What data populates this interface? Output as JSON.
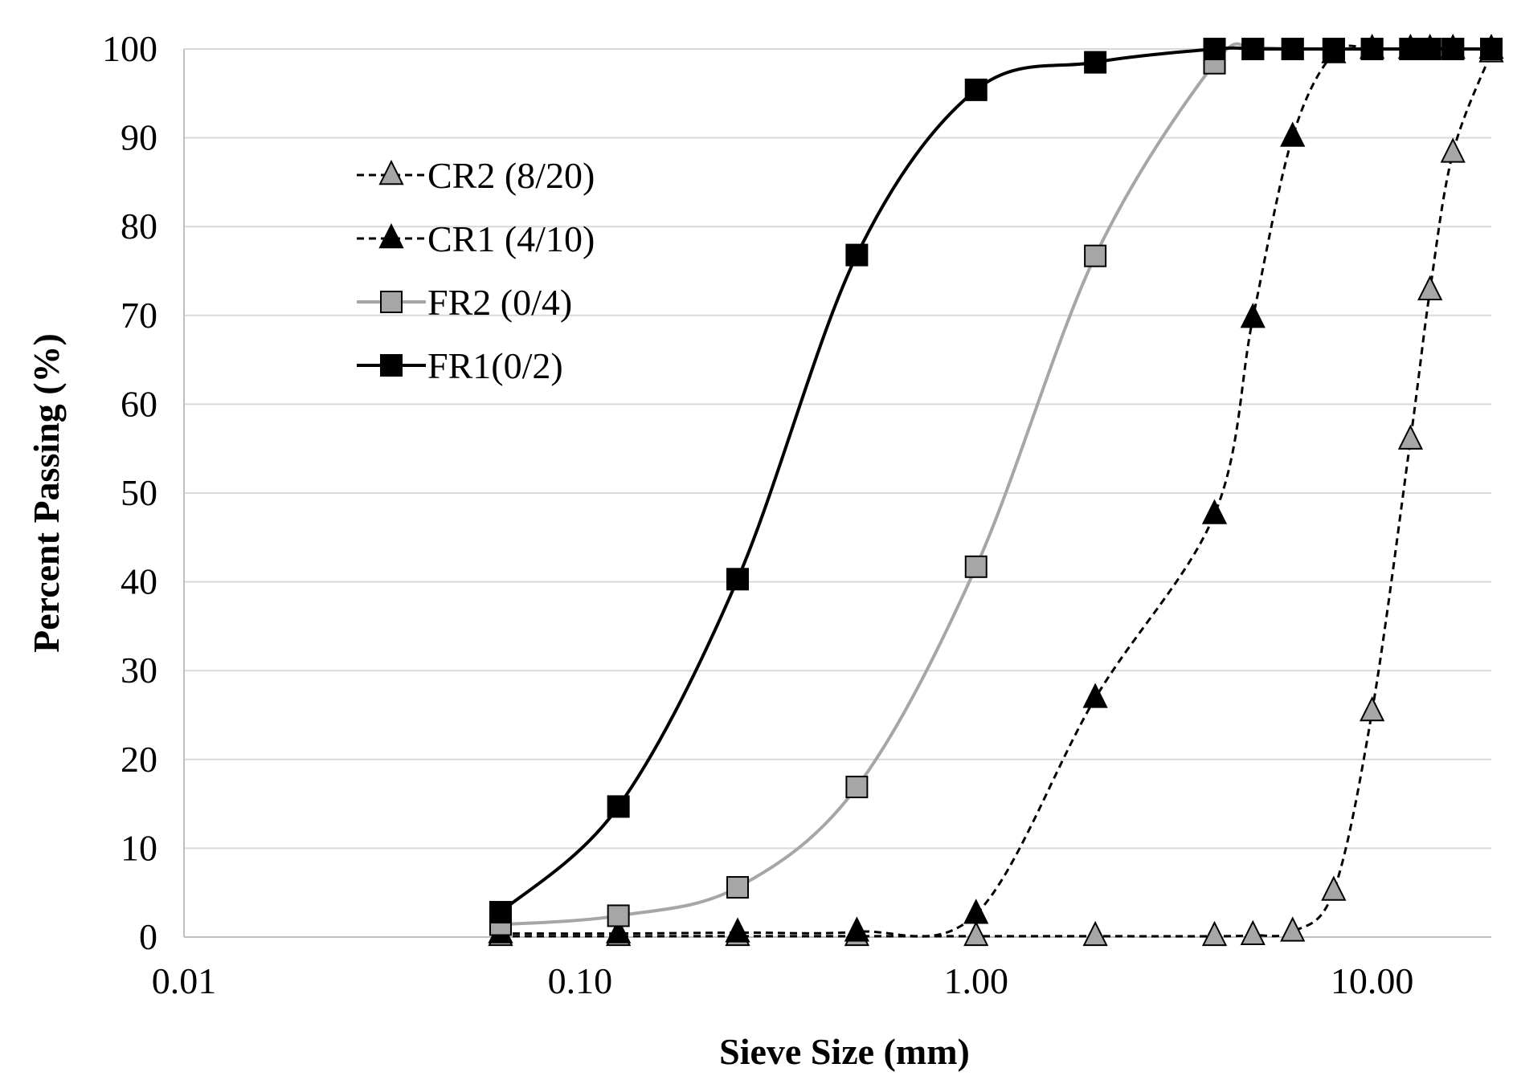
{
  "chart_data": {
    "type": "line",
    "title": "",
    "xlabel": "Sieve Size (mm)",
    "ylabel": "Percent Passing (%)",
    "xscale": "log",
    "xlim": [
      0.01,
      20
    ],
    "ylim": [
      0,
      100
    ],
    "xticks": [
      {
        "value": 0.01,
        "label": "0.01"
      },
      {
        "value": 0.1,
        "label": "0.10"
      },
      {
        "value": 1,
        "label": "1.00"
      },
      {
        "value": 10,
        "label": "10.00"
      }
    ],
    "yticks": [
      0,
      10,
      20,
      30,
      40,
      50,
      60,
      70,
      80,
      90,
      100
    ],
    "grid": "horizontal",
    "legend_position": "top-left",
    "series": [
      {
        "name": "CR2 (8/20)",
        "marker": "triangle",
        "fill": "#a6a6a6",
        "line_color": "#000000",
        "dashed": true,
        "x": [
          0.063,
          0.125,
          0.25,
          0.5,
          1,
          2,
          4,
          5,
          6.3,
          8,
          10,
          12.5,
          14,
          16,
          20
        ],
        "y": [
          0.1,
          0.1,
          0.1,
          0.1,
          0.1,
          0.1,
          0.1,
          0.2,
          0.6,
          5.2,
          25.4,
          56,
          72.8,
          88.3,
          99.6
        ]
      },
      {
        "name": "CR1 (4/10)",
        "marker": "triangle",
        "fill": "#000000",
        "line_color": "#000000",
        "dashed": true,
        "x": [
          0.063,
          0.125,
          0.25,
          0.5,
          1,
          2,
          4,
          5,
          6.3,
          8,
          10,
          12.5,
          14,
          16,
          20
        ],
        "y": [
          0.4,
          0.4,
          0.5,
          0.6,
          2.6,
          26.9,
          47.6,
          69.7,
          90.1,
          99.5,
          100,
          100,
          100,
          100,
          100
        ]
      },
      {
        "name": "FR2 (0/4)",
        "marker": "square",
        "fill": "#a6a6a6",
        "line_color": "#a6a6a6",
        "dashed": false,
        "x": [
          0.063,
          0.125,
          0.25,
          0.5,
          1,
          2,
          4,
          5,
          6.3,
          8,
          10,
          12.5,
          14,
          16,
          20
        ],
        "y": [
          1.4,
          2.4,
          5.6,
          16.9,
          41.7,
          76.7,
          98.4,
          100,
          100,
          100,
          100,
          100,
          100,
          100,
          100
        ]
      },
      {
        "name": "FR1(0/2)",
        "marker": "square",
        "fill": "#000000",
        "line_color": "#000000",
        "dashed": false,
        "x": [
          0.063,
          0.125,
          0.25,
          0.5,
          1,
          2,
          4,
          5,
          6.3,
          8,
          10,
          12.5,
          14,
          16,
          20
        ],
        "y": [
          2.8,
          14.7,
          40.3,
          76.8,
          95.4,
          98.5,
          100,
          100,
          100,
          100,
          100,
          100,
          100,
          100,
          100
        ]
      }
    ]
  }
}
